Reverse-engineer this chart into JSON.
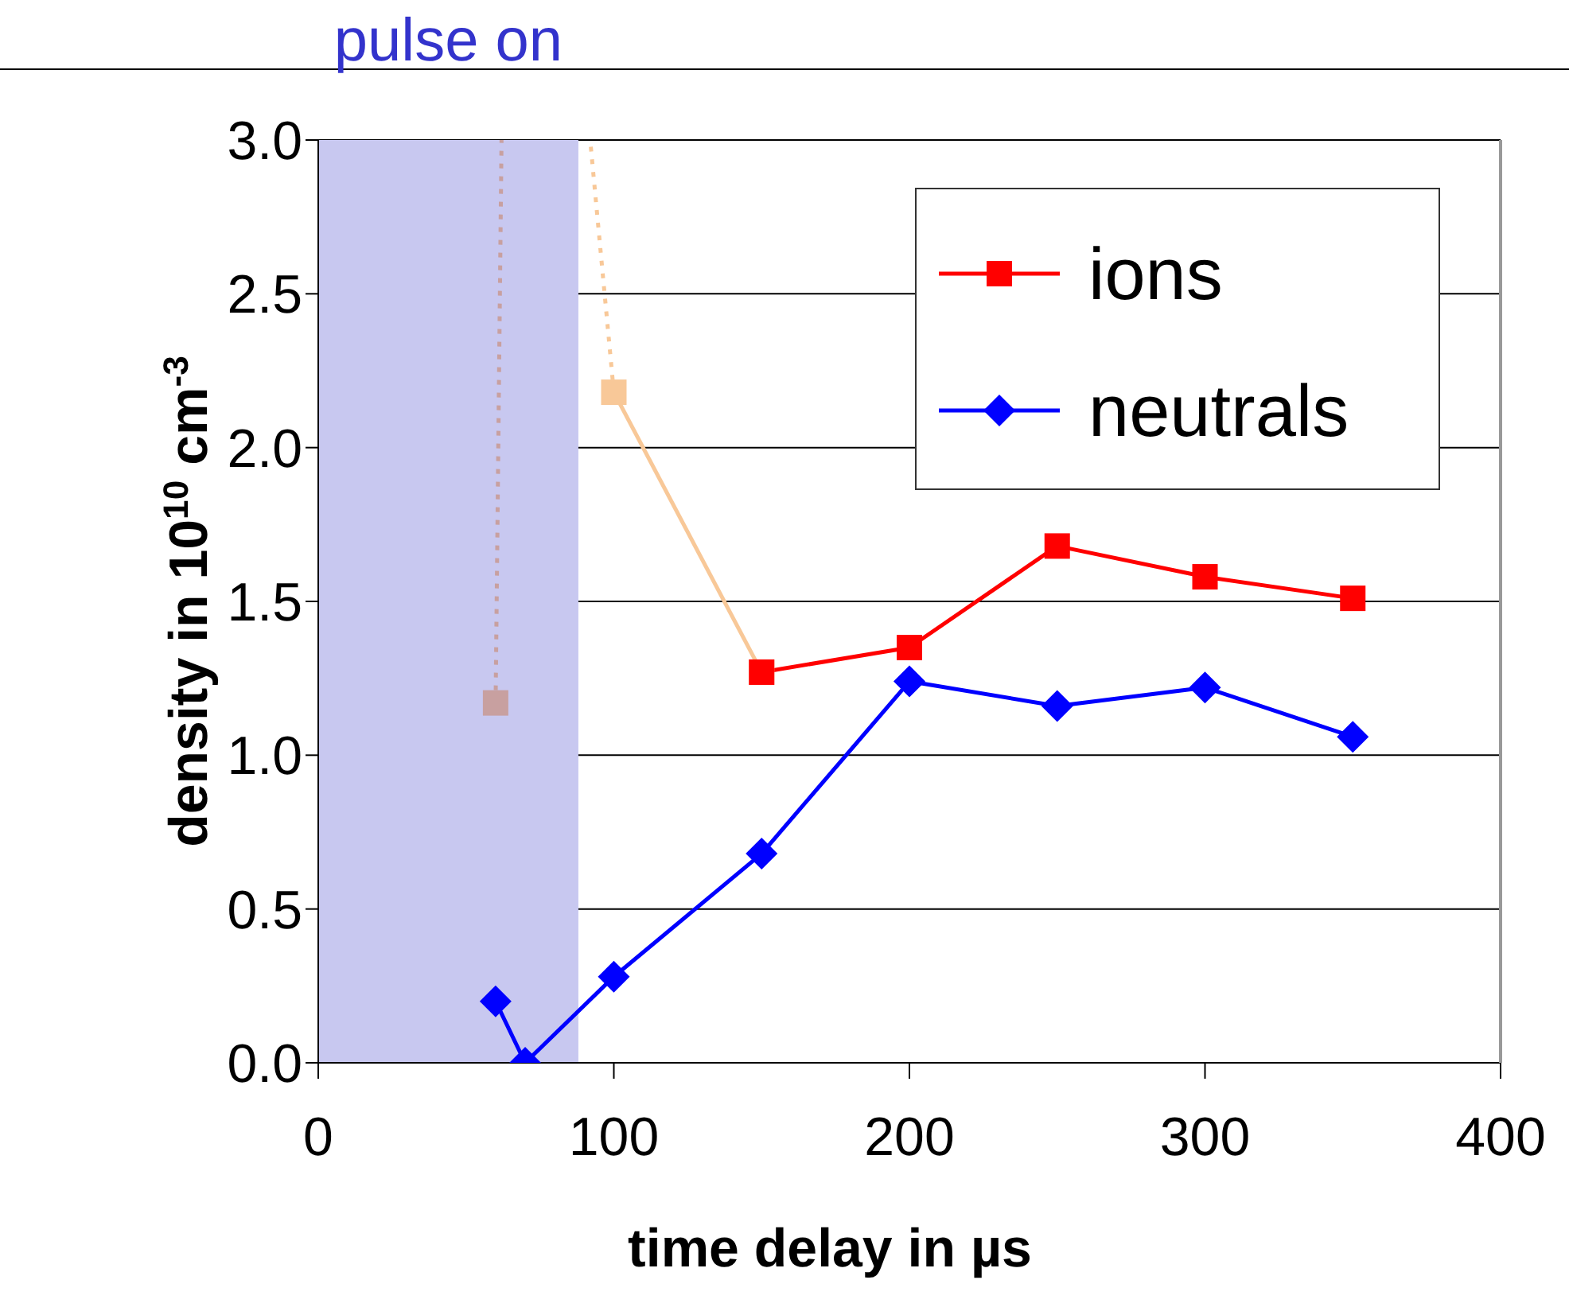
{
  "chart_data": {
    "type": "line",
    "xlabel": "time delay in µs",
    "ylabel": "density in 10$^{10}$ cm$^{-3}$",
    "xlim": [
      0,
      400
    ],
    "xticks": [
      0,
      100,
      200,
      300,
      400
    ],
    "ylim": [
      0,
      3
    ],
    "yticks": [
      {
        "value": 0,
        "label": "0.0"
      },
      {
        "value": 0.5,
        "label": "0.5"
      },
      {
        "value": 1,
        "label": "1.0"
      },
      {
        "value": 1.5,
        "label": "1.5"
      },
      {
        "value": 2,
        "label": "2.0"
      },
      {
        "value": 2.5,
        "label": "2.5"
      },
      {
        "value": 3,
        "label": "3.0"
      }
    ],
    "grid": "y",
    "legend": "top right",
    "bands": [
      {
        "axis": "x",
        "from": 0,
        "to": 88,
        "label": "pulse on",
        "color": "#c8c8f0"
      }
    ],
    "series": [
      {
        "color": "#c8a0a0",
        "x": [
          60,
          62
        ],
        "values": [
          1.17,
          3.0
        ],
        "line_style": "dotted"
      },
      {
        "color": "#f8c898",
        "x": [
          100,
          92
        ],
        "values": [
          2.18,
          3.0
        ],
        "line_style": "dotted"
      },
      {
        "type": "scatter",
        "color": "#c8a0a0",
        "x": [
          60
        ],
        "values": [
          1.17
        ],
        "marker": "square"
      },
      {
        "color": "#f8c898",
        "x": [
          100,
          150
        ],
        "values": [
          2.18,
          1.27
        ],
        "marker": "square"
      },
      {
        "name": "ions",
        "color": "#ff0000",
        "x": [
          150,
          200,
          250,
          300,
          350
        ],
        "values": [
          1.27,
          1.35,
          1.68,
          1.58,
          1.51
        ],
        "marker": "square"
      },
      {
        "name": "neutrals",
        "color": "#0000ff",
        "x": [
          60,
          70,
          100,
          150,
          200,
          250,
          300,
          350
        ],
        "values": [
          0.2,
          0.0,
          0.28,
          0.68,
          1.24,
          1.16,
          1.22,
          1.06
        ],
        "marker": "diamond"
      }
    ]
  }
}
